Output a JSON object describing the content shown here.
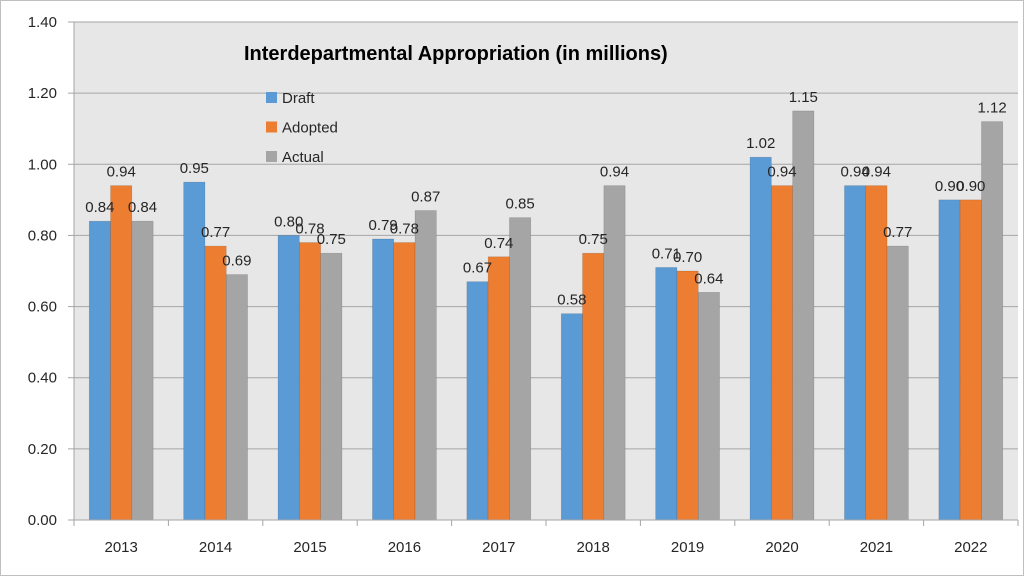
{
  "chart_data": {
    "type": "bar",
    "title": "Interdepartmental Appropriation (in millions)",
    "xlabel": "",
    "ylabel": "",
    "categories": [
      "2013",
      "2014",
      "2015",
      "2016",
      "2017",
      "2018",
      "2019",
      "2020",
      "2021",
      "2022"
    ],
    "series": [
      {
        "name": "Draft",
        "color": "#5b9bd5",
        "values": [
          0.84,
          0.95,
          0.8,
          0.79,
          0.67,
          0.58,
          0.71,
          1.02,
          0.94,
          0.9
        ]
      },
      {
        "name": "Adopted",
        "color": "#ed7d31",
        "values": [
          0.94,
          0.77,
          0.78,
          0.78,
          0.74,
          0.75,
          0.7,
          0.94,
          0.94,
          0.9
        ]
      },
      {
        "name": "Actual",
        "color": "#a5a5a5",
        "values": [
          0.84,
          0.69,
          0.75,
          0.87,
          0.85,
          0.94,
          0.64,
          1.15,
          0.77,
          1.12
        ]
      }
    ],
    "ylim": [
      0,
      1.4
    ],
    "yticks": [
      "0.00",
      "0.20",
      "0.40",
      "0.60",
      "0.80",
      "1.00",
      "1.20",
      "1.40"
    ],
    "grid": true,
    "legend": "top-left",
    "data_labels": true,
    "label_format": "2 decimals",
    "plot_background": "#e7e7e7"
  }
}
